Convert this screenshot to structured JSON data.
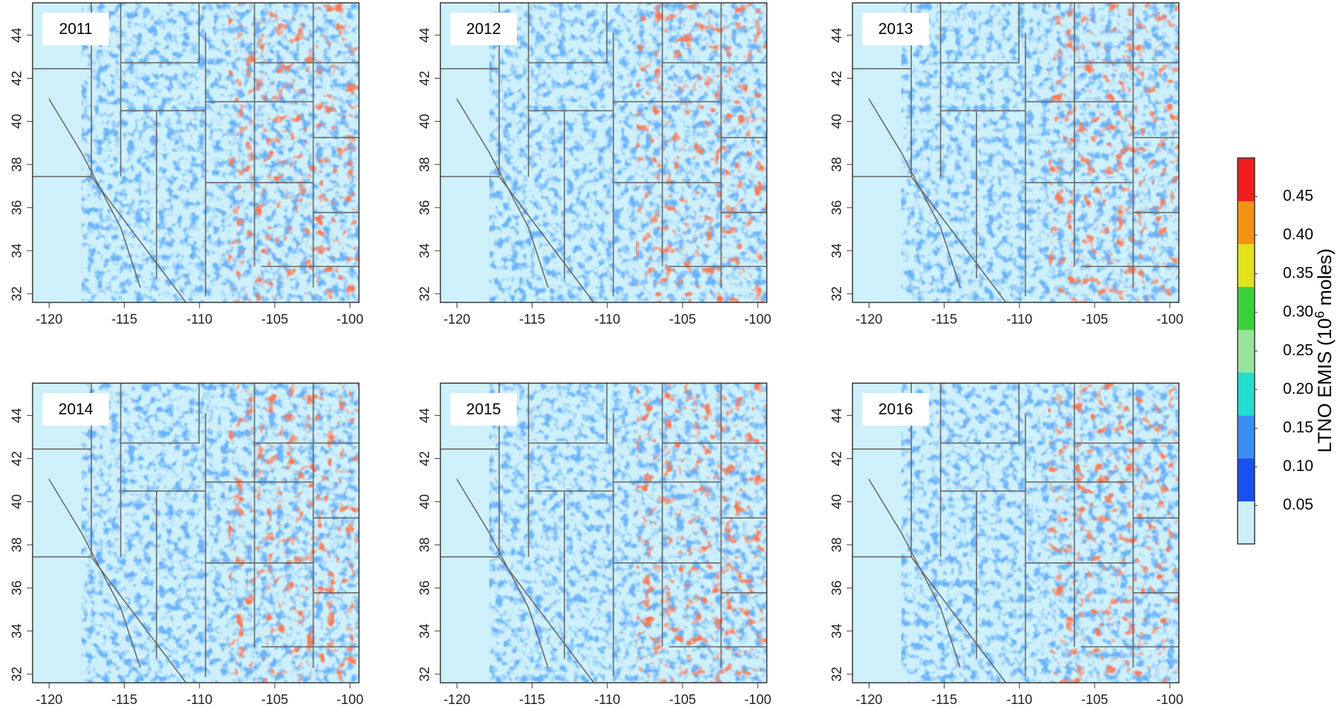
{
  "panels": [
    {
      "label": "2011"
    },
    {
      "label": "2012"
    },
    {
      "label": "2013"
    },
    {
      "label": "2014"
    },
    {
      "label": "2015"
    },
    {
      "label": "2016"
    }
  ],
  "axes": {
    "xlim": [
      -121.1,
      -99.4
    ],
    "xticks": [
      -120,
      -115,
      -110,
      -105,
      -100
    ],
    "ylim": [
      31.6,
      45.5
    ],
    "yticks": [
      32,
      34,
      36,
      38,
      40,
      42,
      44
    ]
  },
  "colorbar": {
    "label": {
      "prefix": "LTNO EMIS (10",
      "superscript": "6",
      "suffix": " moles)"
    },
    "lim": [
      0,
      0.5
    ],
    "ticks": [
      0.05,
      {
        "value": 0.1,
        "label": "0.10"
      },
      0.15,
      {
        "value": 0.2,
        "label": "0.20"
      },
      0.25,
      {
        "value": 0.3,
        "label": "0.30"
      },
      0.35,
      {
        "value": 0.4,
        "label": "0.40"
      },
      0.45
    ],
    "colors": [
      "#cdf0fb",
      "#1a4ff0",
      "#3d8ef2",
      "#22ddd0",
      "#98e39a",
      "#3ccf3c",
      "#e2e21e",
      "#f39212",
      "#f01e1e"
    ]
  }
}
